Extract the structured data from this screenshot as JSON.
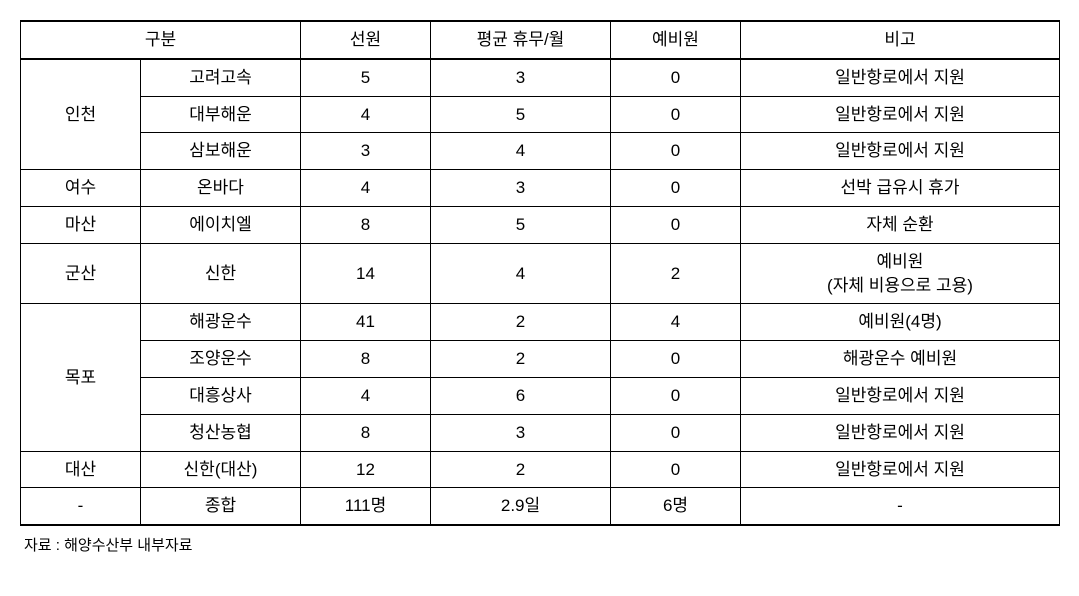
{
  "table": {
    "headers": {
      "category": "구분",
      "crew": "선원",
      "avg_rest": "평균 휴무/월",
      "reserve": "예비원",
      "note": "비고"
    },
    "rows": [
      {
        "region": "인천",
        "company": "고려고속",
        "crew": "5",
        "avg_rest": "3",
        "reserve": "0",
        "note": "일반항로에서 지원",
        "rowspan": 3
      },
      {
        "region": "",
        "company": "대부해운",
        "crew": "4",
        "avg_rest": "5",
        "reserve": "0",
        "note": "일반항로에서 지원"
      },
      {
        "region": "",
        "company": "삼보해운",
        "crew": "3",
        "avg_rest": "4",
        "reserve": "0",
        "note": "일반항로에서 지원"
      },
      {
        "region": "여수",
        "company": "온바다",
        "crew": "4",
        "avg_rest": "3",
        "reserve": "0",
        "note": "선박 급유시 휴가",
        "rowspan": 1
      },
      {
        "region": "마산",
        "company": "에이치엘",
        "crew": "8",
        "avg_rest": "5",
        "reserve": "0",
        "note": "자체 순환",
        "rowspan": 1
      },
      {
        "region": "군산",
        "company": "신한",
        "crew": "14",
        "avg_rest": "4",
        "reserve": "2",
        "note": "예비원\n(자체 비용으로 고용)",
        "rowspan": 1
      },
      {
        "region": "목포",
        "company": "해광운수",
        "crew": "41",
        "avg_rest": "2",
        "reserve": "4",
        "note": "예비원(4명)",
        "rowspan": 4
      },
      {
        "region": "",
        "company": "조양운수",
        "crew": "8",
        "avg_rest": "2",
        "reserve": "0",
        "note": "해광운수 예비원"
      },
      {
        "region": "",
        "company": "대흥상사",
        "crew": "4",
        "avg_rest": "6",
        "reserve": "0",
        "note": "일반항로에서 지원"
      },
      {
        "region": "",
        "company": "청산농협",
        "crew": "8",
        "avg_rest": "3",
        "reserve": "0",
        "note": "일반항로에서 지원"
      },
      {
        "region": "대산",
        "company": "신한(대산)",
        "crew": "12",
        "avg_rest": "2",
        "reserve": "0",
        "note": "일반항로에서 지원",
        "rowspan": 1
      },
      {
        "region": "-",
        "company": "종합",
        "crew": "111명",
        "avg_rest": "2.9일",
        "reserve": "6명",
        "note": "-",
        "rowspan": 1
      }
    ]
  },
  "footnote": "자료 : 해양수산부 내부자료"
}
